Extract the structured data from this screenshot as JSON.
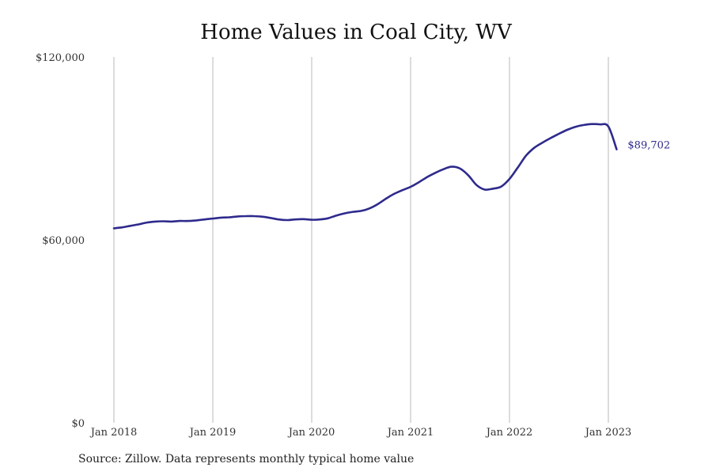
{
  "chart_data": {
    "type": "line",
    "title": "Home Values in Coal City, WV",
    "source": "Source: Zillow. Data represents monthly typical home value",
    "ylim": [
      0,
      120000
    ],
    "y_ticks": [
      {
        "value": 0,
        "label": "$0"
      },
      {
        "value": 60000,
        "label": "$60,000"
      },
      {
        "value": 120000,
        "label": "$120,000"
      }
    ],
    "x_ticks": [
      {
        "value": "2018-01",
        "label": "Jan 2018"
      },
      {
        "value": "2019-01",
        "label": "Jan 2019"
      },
      {
        "value": "2020-01",
        "label": "Jan 2020"
      },
      {
        "value": "2021-01",
        "label": "Jan 2021"
      },
      {
        "value": "2022-01",
        "label": "Jan 2022"
      },
      {
        "value": "2023-01",
        "label": "Jan 2023"
      }
    ],
    "xlim": [
      "2018-01",
      "2023-04"
    ],
    "grid": "vertical",
    "line_color": "#2e2a8c",
    "end_label": "$89,702",
    "series": [
      {
        "x": [
          "2018-01",
          "2018-02",
          "2018-03",
          "2018-04",
          "2018-05",
          "2018-06",
          "2018-07",
          "2018-08",
          "2018-09",
          "2018-10",
          "2018-11",
          "2018-12",
          "2019-01",
          "2019-02",
          "2019-03",
          "2019-04",
          "2019-05",
          "2019-06",
          "2019-07",
          "2019-08",
          "2019-09",
          "2019-10",
          "2019-11",
          "2019-12",
          "2020-01",
          "2020-02",
          "2020-03",
          "2020-04",
          "2020-05",
          "2020-06",
          "2020-07",
          "2020-08",
          "2020-09",
          "2020-10",
          "2020-11",
          "2020-12",
          "2021-01",
          "2021-02",
          "2021-03",
          "2021-04",
          "2021-05",
          "2021-06",
          "2021-07",
          "2021-08",
          "2021-09",
          "2021-10",
          "2021-11",
          "2021-12",
          "2022-01",
          "2022-02",
          "2022-03",
          "2022-04",
          "2022-05",
          "2022-06",
          "2022-07",
          "2022-08",
          "2022-09",
          "2022-10",
          "2022-11",
          "2022-12",
          "2023-01",
          "2023-02"
        ],
        "y": [
          63800,
          64100,
          64600,
          65100,
          65700,
          66000,
          66100,
          66000,
          66200,
          66200,
          66400,
          66700,
          67000,
          67300,
          67400,
          67700,
          67800,
          67800,
          67600,
          67200,
          66700,
          66500,
          66700,
          66800,
          66600,
          66700,
          67100,
          68000,
          68700,
          69200,
          69500,
          70300,
          71700,
          73500,
          75100,
          76300,
          77400,
          78900,
          80600,
          82000,
          83200,
          84000,
          83400,
          81200,
          78000,
          76500,
          76800,
          77500,
          80000,
          83700,
          87600,
          90200,
          91900,
          93400,
          94800,
          96100,
          97100,
          97700,
          98000,
          97900,
          97200,
          89702
        ]
      }
    ]
  }
}
